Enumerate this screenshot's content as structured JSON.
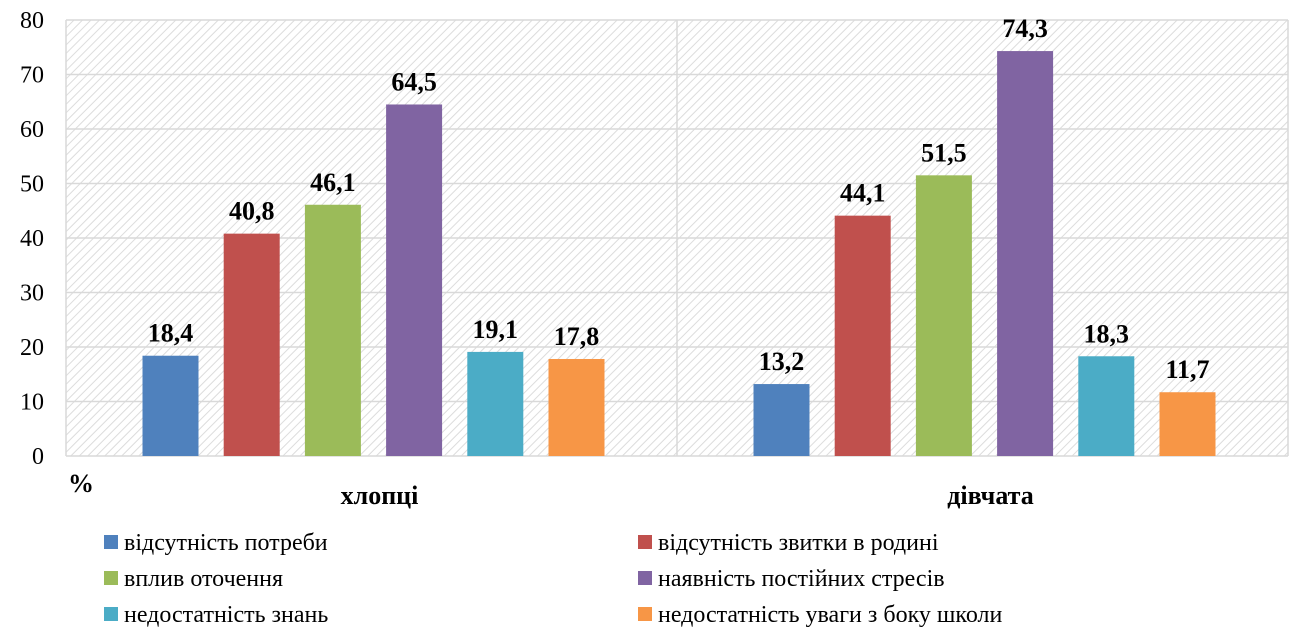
{
  "chart_data": {
    "type": "bar",
    "categories": [
      "хлопці",
      "дівчата"
    ],
    "y_unit_label": "%",
    "ylim": [
      0,
      80
    ],
    "yticks": [
      0,
      10,
      20,
      30,
      40,
      50,
      60,
      70,
      80
    ],
    "grid": true,
    "legend_position": "bottom",
    "series": [
      {
        "name": "відсутність потреби",
        "color": "#4f81bd",
        "values": [
          18.4,
          13.2
        ],
        "labels": [
          "18,4",
          "13,2"
        ]
      },
      {
        "name": "відсутність звитки в родині",
        "color": "#c0504d",
        "values": [
          40.8,
          44.1
        ],
        "labels": [
          "40,8",
          "44,1"
        ]
      },
      {
        "name": "вплив оточення",
        "color": "#9bbb59",
        "values": [
          46.1,
          51.5
        ],
        "labels": [
          "46,1",
          "51,5"
        ]
      },
      {
        "name": "наявність постійних стресів",
        "color": "#8064a2",
        "values": [
          64.5,
          74.3
        ],
        "labels": [
          "64,5",
          "74,3"
        ]
      },
      {
        "name": "недостатність знань",
        "color": "#4bacc6",
        "values": [
          19.1,
          18.3
        ],
        "labels": [
          "19,1",
          "18,3"
        ]
      },
      {
        "name": "недостатність уваги з боку школи",
        "color": "#f79646",
        "values": [
          17.8,
          11.7
        ],
        "labels": [
          "17,8",
          "11,7"
        ]
      }
    ]
  }
}
